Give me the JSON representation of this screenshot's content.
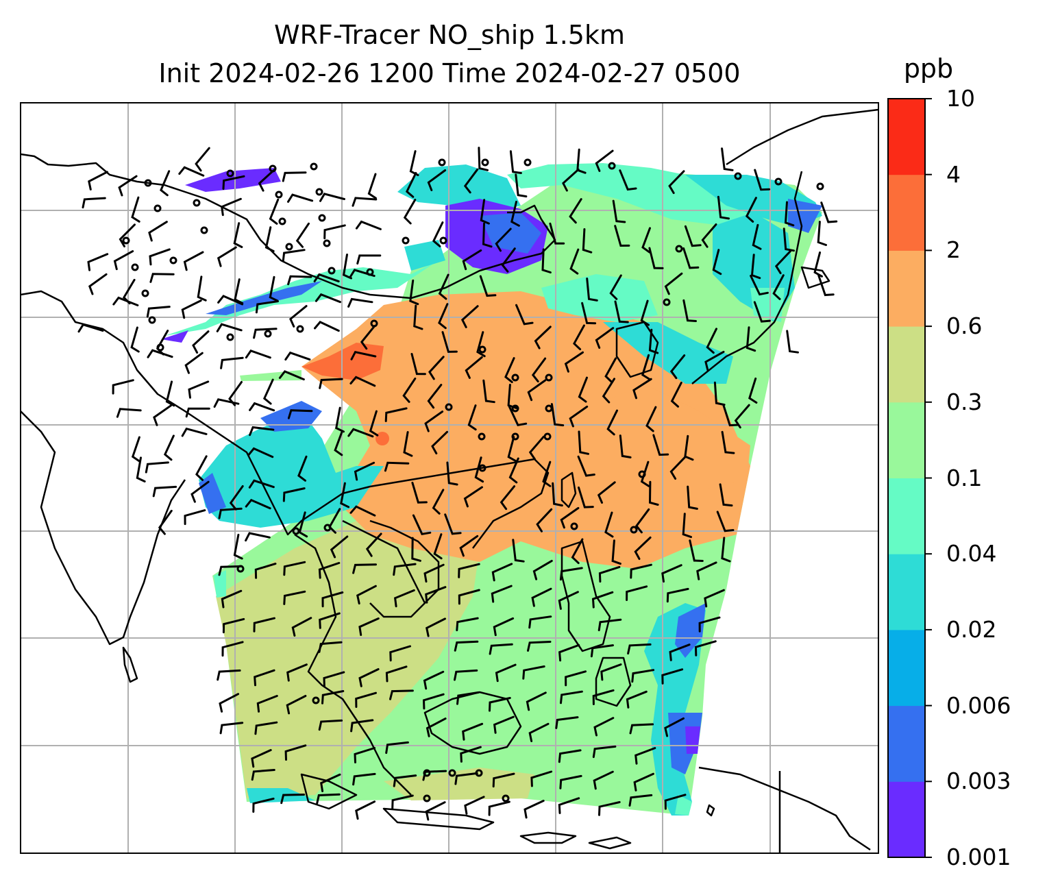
{
  "title_line1": "WRF-Tracer NO_ship 1.5km",
  "title_line2": "Init 2024-02-26 1200 Time 2024-02-27 0500",
  "colorbar": {
    "unit": "ppb",
    "levels": [
      "0.001",
      "0.003",
      "0.006",
      "0.02",
      "0.04",
      "0.1",
      "0.3",
      "0.6",
      "2",
      "4",
      "10"
    ],
    "colors": [
      "#6a2cff",
      "#3570f0",
      "#07aee8",
      "#2edcd6",
      "#65fbc5",
      "#99f89b",
      "#ccdf85",
      "#fcad61",
      "#fc6e39",
      "#fb2b17"
    ]
  },
  "map": {
    "field": "NO_ship tracer concentration at 1.5km with wind barbs",
    "gridlines": true
  }
}
